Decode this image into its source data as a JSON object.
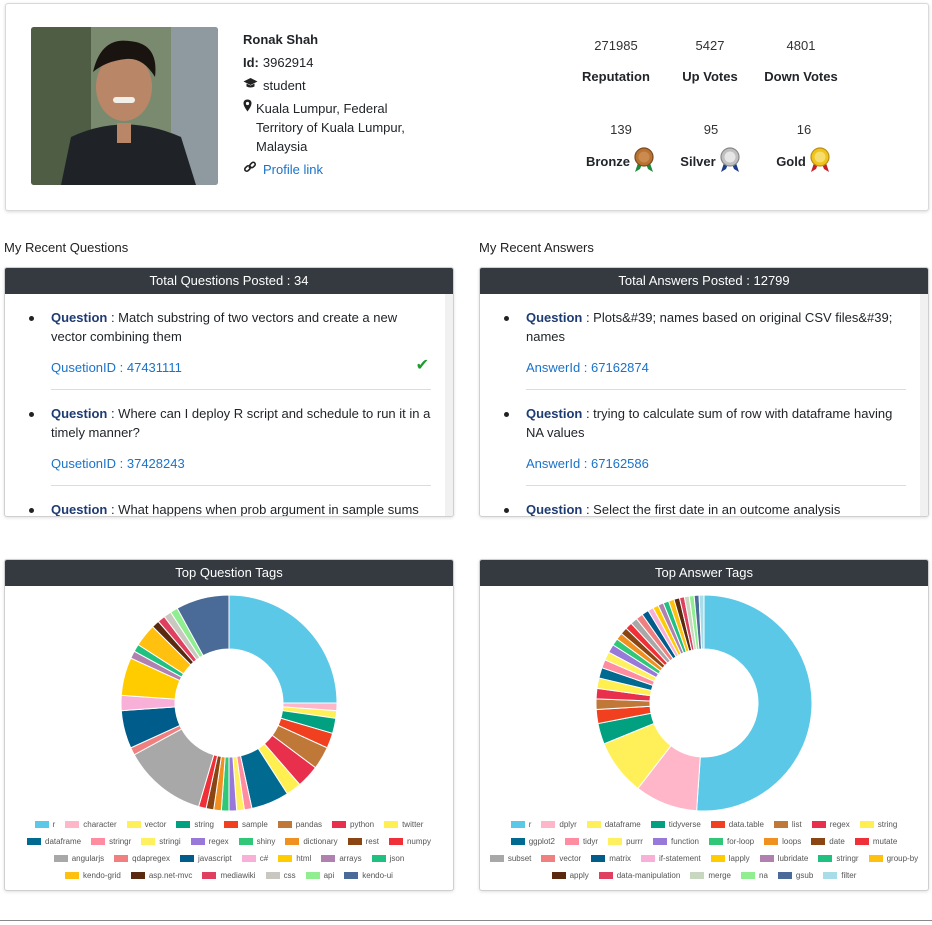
{
  "profile": {
    "name": "Ronak Shah",
    "id_label": "Id:",
    "id_value": "3962914",
    "role": "student",
    "location": "Kuala Lumpur, Federal Territory of Kuala Lumpur, Malaysia",
    "profile_link": "Profile link"
  },
  "stats": [
    {
      "value": "271985",
      "label": "Reputation"
    },
    {
      "value": "5427",
      "label": "Up Votes"
    },
    {
      "value": "4801",
      "label": "Down Votes"
    }
  ],
  "badges": [
    {
      "value": "139",
      "label": "Bronze",
      "color": "#b87333"
    },
    {
      "value": "95",
      "label": "Silver",
      "color": "#c0c0c0"
    },
    {
      "value": "16",
      "label": "Gold",
      "color": "#f0c419"
    }
  ],
  "questions": {
    "section_title": "My Recent Questions",
    "header": "Total Questions Posted : 34",
    "items": [
      {
        "label": "Question",
        "text": " : Match substring of two vectors and create a new vector combining them",
        "id": "QusetionID : 47431111",
        "accepted": true
      },
      {
        "label": "Question",
        "text": " : Where can I deploy R script and schedule to run it in a timely manner?",
        "id": "QusetionID : 37428243",
        "accepted": false
      },
      {
        "label": "Question",
        "text": " : What happens when prob argument in sample sums",
        "id": "",
        "accepted": false
      }
    ]
  },
  "answers": {
    "section_title": "My Recent Answers",
    "header": "Total Answers Posted : 12799",
    "items": [
      {
        "label": "Question",
        "text": " : Plots&#39; names based on original CSV files&#39; names",
        "id": "AnswerId : 67162874"
      },
      {
        "label": "Question",
        "text": " : trying to calculate sum of row with dataframe having NA values",
        "id": "AnswerId : 67162586"
      },
      {
        "label": "Question",
        "text": " : Select the first date in an outcome analysis",
        "id": ""
      }
    ]
  },
  "chart_data": [
    {
      "type": "pie",
      "title": "Top Question Tags",
      "categories": [
        "r",
        "character",
        "vector",
        "string",
        "sample",
        "pandas",
        "python",
        "twitter",
        "dataframe",
        "stringr",
        "stringi",
        "regex",
        "shiny",
        "dictionary",
        "rest",
        "numpy",
        "angularjs",
        "qdapregex",
        "javascript",
        "c#",
        "html",
        "arrays",
        "json",
        "kendo-grid",
        "asp.net-mvc",
        "mediawiki",
        "css",
        "api",
        "kendo-ui"
      ],
      "values": [
        22,
        1,
        1,
        2,
        2,
        3,
        3,
        2,
        5,
        1,
        1,
        1,
        1,
        1,
        1,
        1,
        11,
        1,
        5,
        2,
        5,
        1,
        1,
        3,
        1,
        1,
        1,
        1,
        7
      ],
      "colors": [
        "#5bc8e8",
        "#ffb6c8",
        "#fff05a",
        "#00a080",
        "#f04020",
        "#c07838",
        "#e8304c",
        "#ffef50",
        "#006a90",
        "#ff8ca0",
        "#fff060",
        "#9878d8",
        "#30c878",
        "#f09020",
        "#8b4513",
        "#f03038",
        "#a8a8a8",
        "#f08080",
        "#005c8a",
        "#f8b0d8",
        "#ffcc00",
        "#b080b0",
        "#20c080",
        "#ffc010",
        "#5a2a10",
        "#e04060",
        "#c8c8c0",
        "#90ee90",
        "#4a6a98"
      ]
    },
    {
      "type": "pie",
      "title": "Top Answer Tags",
      "categories": [
        "r",
        "dplyr",
        "dataframe",
        "tidyverse",
        "data.table",
        "list",
        "regex",
        "string",
        "ggplot2",
        "tidyr",
        "purrr",
        "function",
        "for-loop",
        "loops",
        "date",
        "mutate",
        "subset",
        "vector",
        "matrix",
        "if-statement",
        "lapply",
        "lubridate",
        "stringr",
        "group-by",
        "apply",
        "data-manipulation",
        "merge",
        "na",
        "gsub",
        "filter"
      ],
      "values": [
        49,
        9,
        8,
        3,
        2,
        1.5,
        1.5,
        1.5,
        1.5,
        1.2,
        1.2,
        1.2,
        1,
        1,
        1,
        1,
        1,
        1,
        1,
        0.8,
        0.8,
        0.8,
        0.8,
        0.8,
        0.8,
        0.7,
        0.7,
        0.7,
        0.7,
        0.7
      ],
      "colors": [
        "#5bc8e8",
        "#ffb6c8",
        "#fff05a",
        "#00a080",
        "#f04020",
        "#c07838",
        "#e8304c",
        "#ffef50",
        "#006a90",
        "#ff8ca0",
        "#fff060",
        "#9878d8",
        "#30c878",
        "#f09020",
        "#8b4513",
        "#f03038",
        "#a8a8a8",
        "#f08080",
        "#005c8a",
        "#f8b0d8",
        "#ffcc00",
        "#b080b0",
        "#20c080",
        "#ffc010",
        "#5a2a10",
        "#e04060",
        "#c8d8c0",
        "#90ee90",
        "#4a6a98",
        "#a8dce8"
      ]
    }
  ]
}
